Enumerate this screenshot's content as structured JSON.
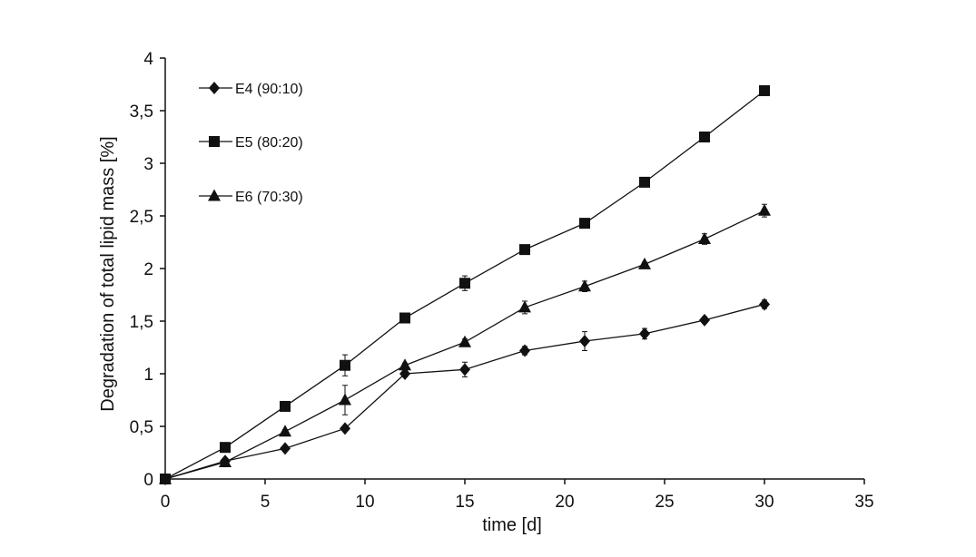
{
  "chart_data": {
    "type": "line",
    "title": "",
    "xlabel": "time [d]",
    "ylabel": "Degradation of total lipid mass [%]",
    "xlim": [
      0,
      35
    ],
    "ylim": [
      0,
      4
    ],
    "xticks": [
      0,
      5,
      10,
      15,
      20,
      25,
      30,
      35
    ],
    "yticks": [
      0,
      0.5,
      1,
      1.5,
      2,
      2.5,
      3,
      3.5,
      4
    ],
    "xtick_labels": [
      "0",
      "5",
      "10",
      "15",
      "20",
      "25",
      "30",
      "35"
    ],
    "ytick_labels": [
      "0",
      "0,5",
      "1",
      "1,5",
      "2",
      "2,5",
      "3",
      "3,5",
      "4"
    ],
    "grid": false,
    "legend_position": "top-left",
    "series": [
      {
        "name": "E4 (90:10)",
        "marker": "diamond",
        "x": [
          0,
          3,
          6,
          9,
          12,
          15,
          18,
          21,
          24,
          27,
          30
        ],
        "y": [
          0,
          0.17,
          0.29,
          0.48,
          1.0,
          1.04,
          1.22,
          1.31,
          1.38,
          1.51,
          1.66
        ],
        "err": [
          0,
          0,
          0.02,
          0.02,
          0.03,
          0.07,
          0.04,
          0.09,
          0.05,
          0.03,
          0.04
        ]
      },
      {
        "name": "E5 (80:20)",
        "marker": "square",
        "x": [
          0,
          3,
          6,
          9,
          12,
          15,
          18,
          21,
          24,
          27,
          30
        ],
        "y": [
          0,
          0.3,
          0.69,
          1.08,
          1.53,
          1.86,
          2.18,
          2.43,
          2.82,
          3.25,
          3.69
        ],
        "err": [
          0,
          0,
          0.02,
          0.1,
          0.02,
          0.07,
          0.02,
          0.03,
          0.03,
          0.02,
          0.02
        ]
      },
      {
        "name": "E6 (70:30)",
        "marker": "triangle",
        "x": [
          0,
          3,
          6,
          9,
          12,
          15,
          18,
          21,
          24,
          27,
          30
        ],
        "y": [
          0,
          0.16,
          0.45,
          0.75,
          1.08,
          1.3,
          1.63,
          1.83,
          2.04,
          2.28,
          2.55
        ],
        "err": [
          0,
          0,
          0.02,
          0.14,
          0.02,
          0.03,
          0.06,
          0.05,
          0.02,
          0.05,
          0.06
        ]
      }
    ]
  }
}
